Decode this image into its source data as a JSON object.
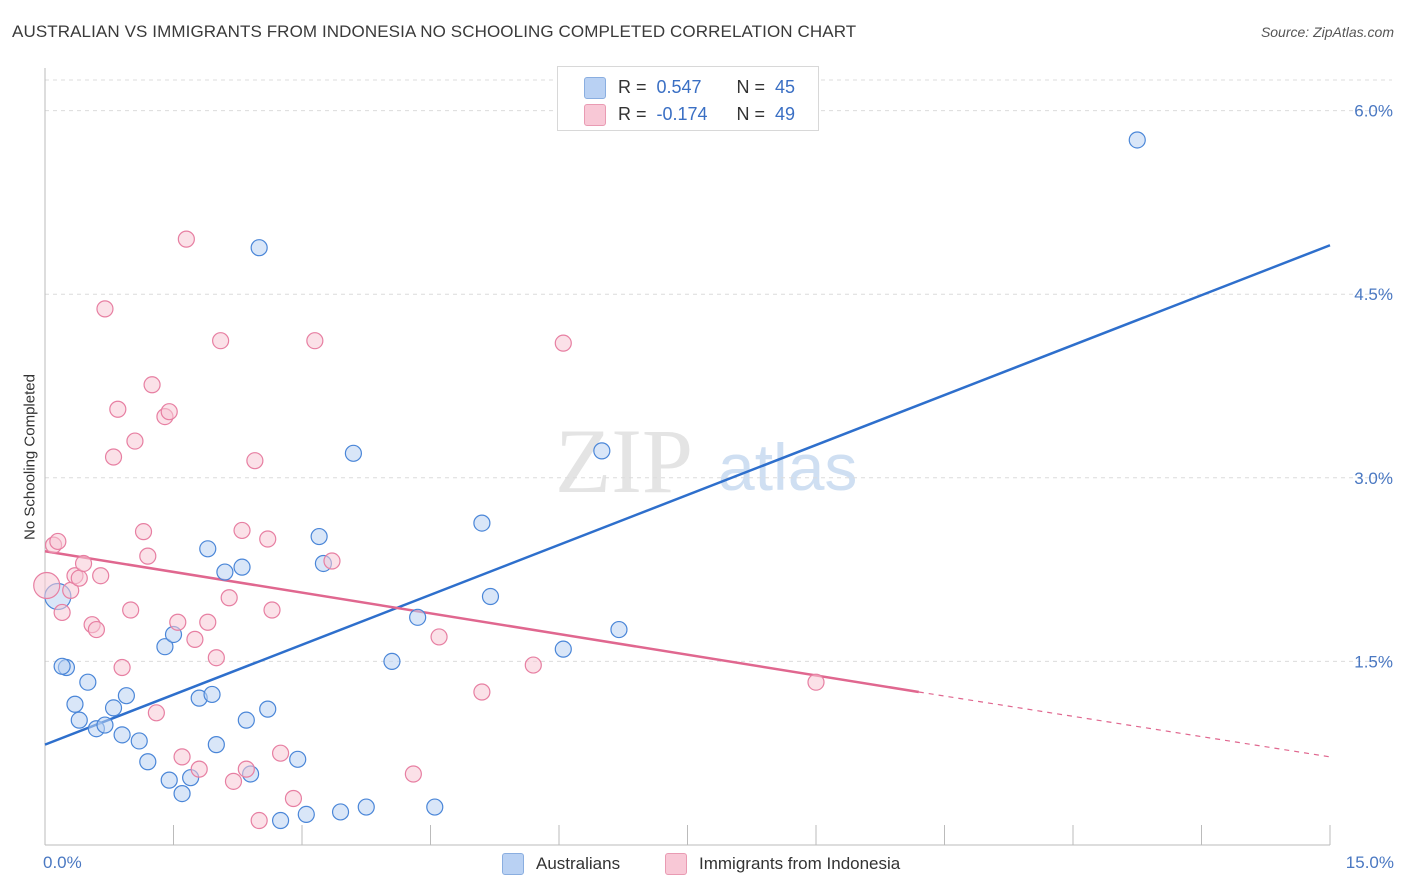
{
  "title": "AUSTRALIAN VS IMMIGRANTS FROM INDONESIA NO SCHOOLING COMPLETED CORRELATION CHART",
  "source": "Source: ZipAtlas.com",
  "watermark": {
    "zip": "ZIP",
    "atlas": "atlas"
  },
  "legend": {
    "r_label": "R =",
    "n_label": "N =",
    "rows": [
      {
        "r": "0.547",
        "n": "45",
        "color": "#b9d1f3",
        "border": "#8aaee0"
      },
      {
        "r": "-0.174",
        "n": "49",
        "color": "#f8c8d6",
        "border": "#e99bb3"
      }
    ]
  },
  "bottom_legend": [
    "Australians",
    "Immigrants from Indonesia"
  ],
  "chart_data": {
    "type": "scatter",
    "xlabel": "",
    "ylabel": "No Schooling Completed",
    "xlim": [
      0,
      15
    ],
    "ylim": [
      0,
      6.25
    ],
    "x_tick_labels": [
      {
        "value": 0,
        "label": "0.0%"
      },
      {
        "value": 15,
        "label": "15.0%"
      }
    ],
    "y_tick_labels": [
      {
        "value": 1.5,
        "label": "1.5%"
      },
      {
        "value": 3.0,
        "label": "3.0%"
      },
      {
        "value": 4.5,
        "label": "4.5%"
      },
      {
        "value": 6.0,
        "label": "6.0%"
      }
    ],
    "x_minor_ticks": [
      1.5,
      3.0,
      4.5,
      6.0,
      7.5,
      9.0,
      10.5,
      12.0,
      13.5,
      15.0
    ],
    "series": [
      {
        "name": "Australians",
        "color": "#4a86d8",
        "fill": "#b9d1f3",
        "r": 0.547,
        "n": 45,
        "trend": {
          "x0": 0,
          "y0": 0.82,
          "x1": 15,
          "y1": 4.9,
          "color": "#2e6fcc"
        },
        "points": [
          [
            0.15,
            2.03
          ],
          [
            0.25,
            1.45
          ],
          [
            0.2,
            1.46
          ],
          [
            0.5,
            1.33
          ],
          [
            0.35,
            1.15
          ],
          [
            0.4,
            1.02
          ],
          [
            0.6,
            0.95
          ],
          [
            0.7,
            0.98
          ],
          [
            0.8,
            1.12
          ],
          [
            0.9,
            0.9
          ],
          [
            0.95,
            1.22
          ],
          [
            1.1,
            0.85
          ],
          [
            1.2,
            0.68
          ],
          [
            1.4,
            1.62
          ],
          [
            1.5,
            1.72
          ],
          [
            1.45,
            0.53
          ],
          [
            1.6,
            0.42
          ],
          [
            1.7,
            0.55
          ],
          [
            1.8,
            1.2
          ],
          [
            1.95,
            1.23
          ],
          [
            2.0,
            0.82
          ],
          [
            1.9,
            2.42
          ],
          [
            2.1,
            2.23
          ],
          [
            2.3,
            2.27
          ],
          [
            2.35,
            1.02
          ],
          [
            2.4,
            0.58
          ],
          [
            2.5,
            4.88
          ],
          [
            2.6,
            1.11
          ],
          [
            2.75,
            0.2
          ],
          [
            2.95,
            0.7
          ],
          [
            3.05,
            0.25
          ],
          [
            3.2,
            2.52
          ],
          [
            3.25,
            2.3
          ],
          [
            3.45,
            0.27
          ],
          [
            3.6,
            3.2
          ],
          [
            3.75,
            0.31
          ],
          [
            4.05,
            1.5
          ],
          [
            4.35,
            1.86
          ],
          [
            4.55,
            0.31
          ],
          [
            5.1,
            2.63
          ],
          [
            5.2,
            2.03
          ],
          [
            6.05,
            1.6
          ],
          [
            6.5,
            3.22
          ],
          [
            6.7,
            1.76
          ],
          [
            12.75,
            5.76
          ]
        ]
      },
      {
        "name": "Immigrants from Indonesia",
        "color": "#e77fa2",
        "fill": "#f8c8d6",
        "r": -0.174,
        "n": 49,
        "trend": {
          "x0": 0,
          "y0": 2.4,
          "x1": 10.2,
          "y1": 1.25,
          "x2": 15,
          "y2": 0.72,
          "color": "#e0678f"
        },
        "points": [
          [
            0.02,
            2.12
          ],
          [
            0.1,
            2.45
          ],
          [
            0.15,
            2.48
          ],
          [
            0.2,
            1.9
          ],
          [
            0.3,
            2.08
          ],
          [
            0.35,
            2.2
          ],
          [
            0.4,
            2.18
          ],
          [
            0.45,
            2.3
          ],
          [
            0.55,
            1.8
          ],
          [
            0.6,
            1.76
          ],
          [
            0.65,
            2.2
          ],
          [
            0.7,
            4.38
          ],
          [
            0.8,
            3.17
          ],
          [
            0.85,
            3.56
          ],
          [
            0.9,
            1.45
          ],
          [
            1.0,
            1.92
          ],
          [
            1.05,
            3.3
          ],
          [
            1.15,
            2.56
          ],
          [
            1.2,
            2.36
          ],
          [
            1.25,
            3.76
          ],
          [
            1.3,
            1.08
          ],
          [
            1.4,
            3.5
          ],
          [
            1.45,
            3.54
          ],
          [
            1.55,
            1.82
          ],
          [
            1.6,
            0.72
          ],
          [
            1.65,
            4.95
          ],
          [
            1.75,
            1.68
          ],
          [
            1.8,
            0.62
          ],
          [
            1.9,
            1.82
          ],
          [
            2.0,
            1.53
          ],
          [
            2.05,
            4.12
          ],
          [
            2.15,
            2.02
          ],
          [
            2.2,
            0.52
          ],
          [
            2.3,
            2.57
          ],
          [
            2.35,
            0.62
          ],
          [
            2.45,
            3.14
          ],
          [
            2.5,
            0.2
          ],
          [
            2.6,
            2.5
          ],
          [
            2.65,
            1.92
          ],
          [
            2.75,
            0.75
          ],
          [
            2.9,
            0.38
          ],
          [
            3.15,
            4.12
          ],
          [
            3.35,
            2.32
          ],
          [
            4.3,
            0.58
          ],
          [
            4.6,
            1.7
          ],
          [
            5.1,
            1.25
          ],
          [
            5.7,
            1.47
          ],
          [
            6.05,
            4.1
          ],
          [
            9.0,
            1.33
          ]
        ]
      }
    ]
  }
}
